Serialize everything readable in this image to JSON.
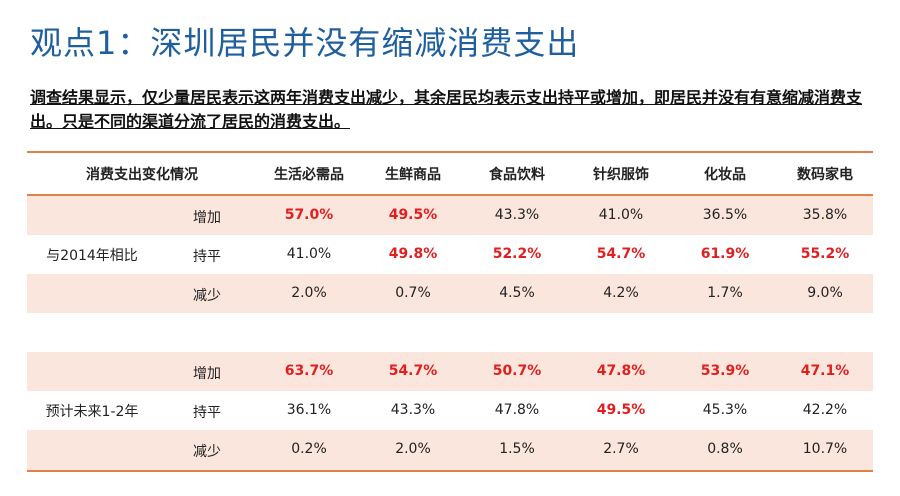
{
  "title": "观点1：深圳居民并没有缩减消费支出",
  "subtitle": "调查结果显示，仅少量居民表示这两年消费支出减少，其余居民均表示支出持平或增加，即居民并没有有意缩减消费支出。只是不同的渠道分流了居民的消费支出。",
  "table": {
    "header": {
      "label": "消费支出变化情况",
      "columns": [
        "生活必需品",
        "生鲜商品",
        "食品饮料",
        "针织服饰",
        "化妆品",
        "数码家电"
      ]
    },
    "groups": [
      {
        "label": "与2014年相比",
        "rows": [
          {
            "label": "增加",
            "values": [
              "57.0%",
              "49.5%",
              "43.3%",
              "41.0%",
              "36.5%",
              "35.8%"
            ],
            "highlight": [
              true,
              true,
              false,
              false,
              false,
              false
            ]
          },
          {
            "label": "持平",
            "values": [
              "41.0%",
              "49.8%",
              "52.2%",
              "54.7%",
              "61.9%",
              "55.2%"
            ],
            "highlight": [
              false,
              true,
              true,
              true,
              true,
              true
            ]
          },
          {
            "label": "减少",
            "values": [
              "2.0%",
              "0.7%",
              "4.5%",
              "4.2%",
              "1.7%",
              "9.0%"
            ],
            "highlight": [
              false,
              false,
              false,
              false,
              false,
              false
            ]
          }
        ]
      },
      {
        "label": "预计未来1-2年",
        "rows": [
          {
            "label": "增加",
            "values": [
              "63.7%",
              "54.7%",
              "50.7%",
              "47.8%",
              "53.9%",
              "47.1%"
            ],
            "highlight": [
              true,
              true,
              true,
              true,
              true,
              true
            ]
          },
          {
            "label": "持平",
            "values": [
              "36.1%",
              "43.3%",
              "47.8%",
              "49.5%",
              "45.3%",
              "42.2%"
            ],
            "highlight": [
              false,
              false,
              false,
              true,
              false,
              false
            ]
          },
          {
            "label": "减少",
            "values": [
              "0.2%",
              "2.0%",
              "1.5%",
              "2.7%",
              "0.8%",
              "10.7%"
            ],
            "highlight": [
              false,
              false,
              false,
              false,
              false,
              false
            ]
          }
        ]
      }
    ]
  },
  "colors": {
    "title": "#1f5f9e",
    "accent_line": "#e0804a",
    "row_shade": "#fae6dc",
    "highlight": "#e02020"
  }
}
